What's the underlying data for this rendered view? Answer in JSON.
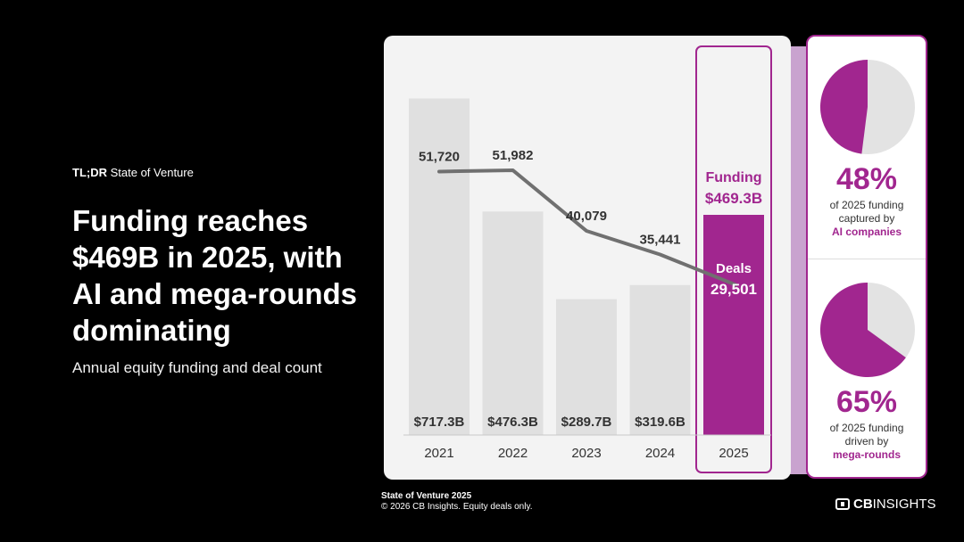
{
  "header": {
    "tldr_bold": "TL;DR",
    "tldr_rest": " State of Venture",
    "headline": "Funding reaches $469B in 2025, with AI and mega-rounds dominating",
    "subtitle": "Annual equity funding and deal count"
  },
  "chart_data": {
    "type": "bar",
    "title": "Annual equity funding and deal count",
    "categories": [
      "2021",
      "2022",
      "2023",
      "2024",
      "2025"
    ],
    "series": [
      {
        "name": "Funding ($B)",
        "values": [
          717.3,
          476.3,
          289.7,
          319.6,
          469.3
        ],
        "labels": [
          "$717.3B",
          "$476.3B",
          "$289.7B",
          "$319.6B",
          "$469.3B"
        ]
      },
      {
        "name": "Deals",
        "type": "line",
        "values": [
          51720,
          51982,
          40079,
          35441,
          29501
        ],
        "labels": [
          "51,720",
          "51,982",
          "40,079",
          "35,441",
          "29,501"
        ]
      }
    ],
    "highlight": {
      "category": "2025",
      "funding_title": "Funding",
      "funding_value": "$469.3B",
      "deals_title": "Deals",
      "deals_value": "29,501"
    },
    "ylim_funding": [
      0,
      760
    ],
    "ylim_deals": [
      0,
      70000
    ],
    "colors": {
      "bar": "#e0e0e0",
      "highlight": "#a1268f",
      "line": "#707070",
      "text": "#333333"
    }
  },
  "stats": [
    {
      "percent": "48%",
      "value": 48,
      "line1": "of 2025 funding",
      "line2": "captured by",
      "highlight": "AI companies"
    },
    {
      "percent": "65%",
      "value": 65,
      "line1": "of 2025 funding",
      "line2": "driven by",
      "highlight": "mega-rounds"
    }
  ],
  "footer": {
    "title": "State of Venture 2025",
    "note": "© 2026 CB Insights. Equity deals only.",
    "logo_bold": "CB",
    "logo_rest": "INSIGHTS"
  },
  "colors": {
    "accent": "#a1268f",
    "pie_bg": "#e3e3e3",
    "background": "#000000"
  }
}
